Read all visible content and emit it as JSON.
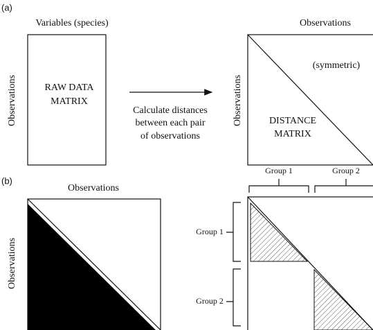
{
  "panel_a": {
    "label": "(a)",
    "raw_matrix": {
      "column_label": "Variables (species)",
      "row_label": "Observations",
      "text": [
        "RAW DATA",
        "MATRIX"
      ]
    },
    "arrow_caption": [
      "Calculate distances",
      "between each pair",
      "of observations"
    ],
    "distance_matrix": {
      "column_label": "Observations",
      "row_label": "Observations",
      "note": "(symmetric)",
      "text": [
        "DISTANCE",
        "MATRIX"
      ]
    }
  },
  "panel_b": {
    "label": "(b)",
    "left_matrix": {
      "column_label": "Observations",
      "row_label": "Observations"
    },
    "right_matrix": {
      "column_groups": [
        "Group 1",
        "Group 2"
      ],
      "row_groups": [
        "Group 1",
        "Group 2"
      ]
    }
  }
}
